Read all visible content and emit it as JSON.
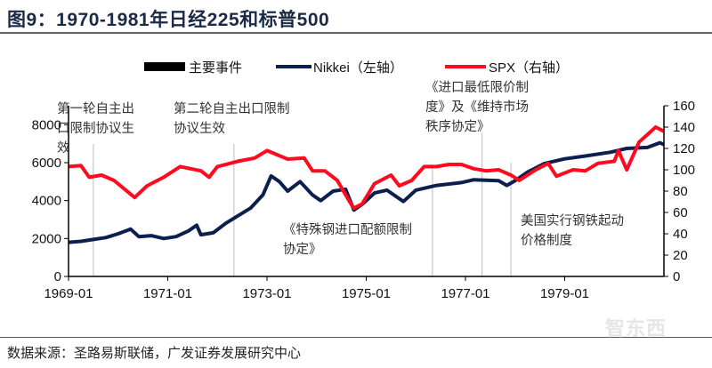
{
  "title": "图9：1970-1981年日经225和标普500",
  "source": "数据来源：圣路易斯联储，广发证券发展研究中心",
  "watermark": "智东西",
  "chart_data": {
    "type": "line",
    "title": "图9：1970-1981年日经225和标普500",
    "xlim": [
      "1969-01",
      "1981-01"
    ],
    "x_ticks": [
      "1969-01",
      "1971-01",
      "1973-01",
      "1975-01",
      "1977-01",
      "1979-01"
    ],
    "y_left": {
      "range": [
        0,
        9000
      ],
      "ticks": [
        0,
        2000,
        4000,
        6000,
        8000
      ]
    },
    "y_right": {
      "range": [
        0,
        160
      ],
      "ticks": [
        0,
        20,
        40,
        60,
        80,
        100,
        120,
        140,
        160
      ]
    },
    "grid": false,
    "legend": "top",
    "legend_entries": [
      "主要事件",
      "Nikkei（左轴）",
      "SPX（右轴）"
    ],
    "series": [
      {
        "name": "Nikkei（左轴）",
        "axis": "left",
        "color": "#0d1f4f",
        "points": [
          [
            "1969-01",
            1800
          ],
          [
            "1969-04",
            1850
          ],
          [
            "1969-07",
            1950
          ],
          [
            "1969-10",
            2050
          ],
          [
            "1970-01",
            2250
          ],
          [
            "1970-04",
            2500
          ],
          [
            "1970-06",
            2100
          ],
          [
            "1970-09",
            2150
          ],
          [
            "1970-12",
            2000
          ],
          [
            "1971-03",
            2100
          ],
          [
            "1971-06",
            2400
          ],
          [
            "1971-08",
            2700
          ],
          [
            "1971-09",
            2200
          ],
          [
            "1971-12",
            2300
          ],
          [
            "1972-03",
            2800
          ],
          [
            "1972-06",
            3200
          ],
          [
            "1972-09",
            3600
          ],
          [
            "1972-12",
            4300
          ],
          [
            "1973-02",
            5300
          ],
          [
            "1973-04",
            5000
          ],
          [
            "1973-06",
            4500
          ],
          [
            "1973-09",
            5000
          ],
          [
            "1973-12",
            4300
          ],
          [
            "1974-02",
            4000
          ],
          [
            "1974-05",
            4500
          ],
          [
            "1974-08",
            4600
          ],
          [
            "1974-10",
            3500
          ],
          [
            "1974-12",
            3800
          ],
          [
            "1975-03",
            4400
          ],
          [
            "1975-06",
            4550
          ],
          [
            "1975-10",
            3950
          ],
          [
            "1976-01",
            4550
          ],
          [
            "1976-06",
            4800
          ],
          [
            "1976-12",
            4950
          ],
          [
            "1977-03",
            5100
          ],
          [
            "1977-09",
            5050
          ],
          [
            "1977-11",
            4800
          ],
          [
            "1978-01",
            5050
          ],
          [
            "1978-04",
            5500
          ],
          [
            "1978-08",
            5950
          ],
          [
            "1979-01",
            6200
          ],
          [
            "1979-06",
            6350
          ],
          [
            "1979-12",
            6550
          ],
          [
            "1980-04",
            6750
          ],
          [
            "1980-09",
            6800
          ],
          [
            "1980-12",
            7050
          ],
          [
            "1981-01",
            6950
          ]
        ]
      },
      {
        "name": "SPX（右轴）",
        "axis": "right",
        "color": "#ff0a1e",
        "points": [
          [
            "1969-01",
            103
          ],
          [
            "1969-04",
            104
          ],
          [
            "1969-06",
            93
          ],
          [
            "1969-09",
            95
          ],
          [
            "1969-12",
            90
          ],
          [
            "1970-05",
            74
          ],
          [
            "1970-08",
            85
          ],
          [
            "1970-12",
            93
          ],
          [
            "1971-04",
            103
          ],
          [
            "1971-09",
            99
          ],
          [
            "1971-11",
            93
          ],
          [
            "1972-01",
            103
          ],
          [
            "1972-06",
            108
          ],
          [
            "1972-10",
            111
          ],
          [
            "1973-01",
            118
          ],
          [
            "1973-06",
            110
          ],
          [
            "1973-10",
            111
          ],
          [
            "1973-12",
            99
          ],
          [
            "1974-03",
            99
          ],
          [
            "1974-06",
            90
          ],
          [
            "1974-09",
            70
          ],
          [
            "1974-10",
            64
          ],
          [
            "1974-12",
            68
          ],
          [
            "1975-03",
            87
          ],
          [
            "1975-07",
            95
          ],
          [
            "1975-09",
            85
          ],
          [
            "1975-12",
            90
          ],
          [
            "1976-03",
            103
          ],
          [
            "1976-06",
            103
          ],
          [
            "1976-09",
            105
          ],
          [
            "1976-12",
            105
          ],
          [
            "1977-03",
            101
          ],
          [
            "1977-06",
            99
          ],
          [
            "1977-09",
            100
          ],
          [
            "1977-12",
            95
          ],
          [
            "1978-02",
            90
          ],
          [
            "1978-06",
            100
          ],
          [
            "1978-09",
            106
          ],
          [
            "1978-11",
            94
          ],
          [
            "1979-03",
            100
          ],
          [
            "1979-06",
            99
          ],
          [
            "1979-09",
            106
          ],
          [
            "1980-01",
            108
          ],
          [
            "1980-02",
            118
          ],
          [
            "1980-04",
            100
          ],
          [
            "1980-07",
            126
          ],
          [
            "1980-11",
            140
          ],
          [
            "1981-01",
            136
          ]
        ]
      }
    ],
    "events": [
      {
        "date": "1969-07",
        "label": "第一轮自主出\n口限制协议生\n效"
      },
      {
        "date": "1972-05",
        "label": "第二轮自主出口限制\n协议生效"
      },
      {
        "date": "1976-05",
        "label": "《特殊钢进口配额限制\n协定》"
      },
      {
        "date": "1977-05",
        "label": "《进口最低限价制\n度》及《维持市场\n秩序协定》"
      },
      {
        "date": "1977-12",
        "label": "美国实行钢铁起动\n价格制度"
      }
    ],
    "event_color": "#c8c8c8"
  }
}
